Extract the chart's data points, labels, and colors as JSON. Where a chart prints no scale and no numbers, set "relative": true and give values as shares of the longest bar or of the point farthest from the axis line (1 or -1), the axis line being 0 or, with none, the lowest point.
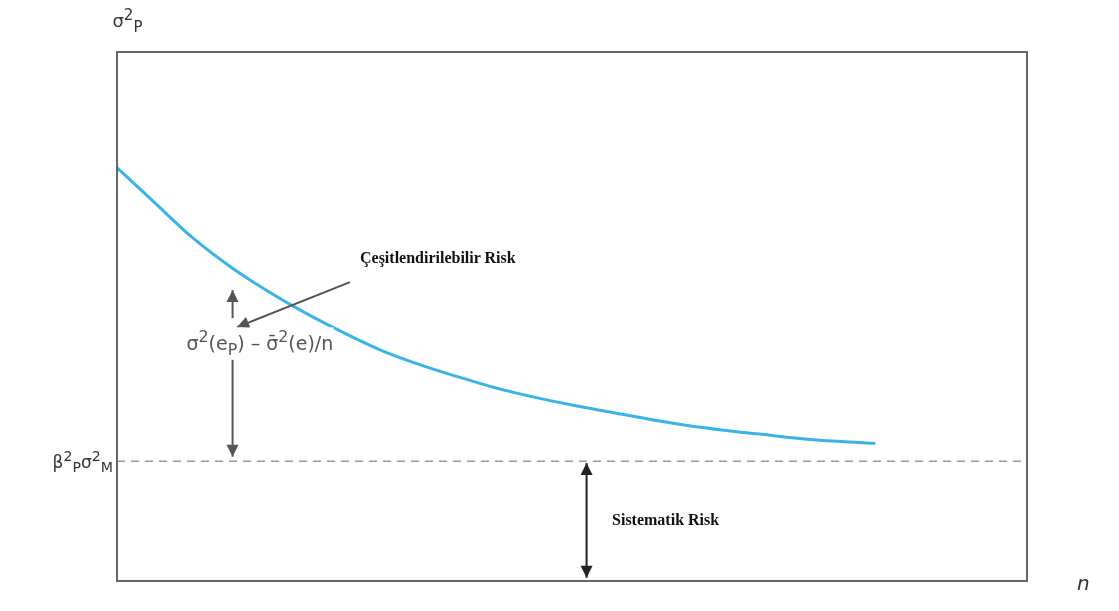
{
  "chart_data": {
    "type": "line",
    "relative": true,
    "xlabel": "n",
    "categories": [
      null,
      null,
      null,
      null,
      null,
      null,
      null,
      null,
      null,
      null,
      null,
      null,
      null,
      null,
      null,
      null,
      null,
      null,
      null,
      null,
      null,
      null,
      null,
      null,
      null
    ],
    "series": [
      {
        "color": "#3ab4e6",
        "values": [
          1.0,
          0.915,
          0.83,
          0.76,
          0.7,
          0.647,
          0.6,
          0.557,
          0.523,
          0.494,
          0.467,
          0.445,
          0.426,
          0.409,
          0.392,
          0.377,
          0.365,
          0.355,
          0.345,
          0.338,
          0.333,
          null,
          null,
          null,
          null
        ]
      }
    ],
    "ref_lines": [
      {
        "axis": "y",
        "value": 0.29,
        "label": "β$^{2}$$_{P}$σ$^{2}$$_{M}$",
        "color": "#999999",
        "line_style": "dashed"
      }
    ],
    "annotations": [
      "σ$^{2}$$_{P}$",
      "Çeşitlendirilebilir Risk",
      "σ$^{2}$(e$_{P}$) – σ̄$^{2}$(e)/n",
      "Sistematik Risk"
    ],
    "legend": false,
    "marker": "none",
    "line_style": "solid"
  }
}
